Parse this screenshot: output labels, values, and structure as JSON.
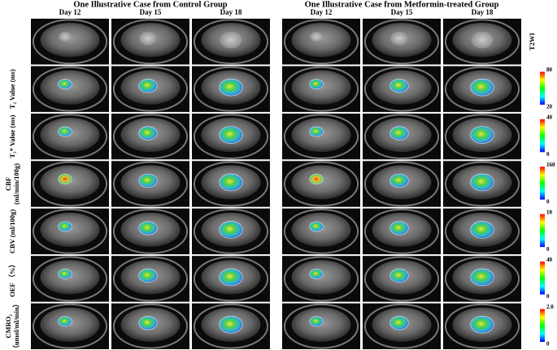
{
  "groups": [
    {
      "title": "One Illustrative Case from Control Group",
      "days": [
        "Day 12",
        "Day 15",
        "Day 18"
      ]
    },
    {
      "title": "One Illustrative Case from Metformin-treated Group",
      "days": [
        "Day 12",
        "Day 15",
        "Day 18"
      ]
    }
  ],
  "rows": [
    {
      "label": [
        "T2WI"
      ]
    },
    {
      "label": [
        "T₂ Value (ms)"
      ],
      "colorbar": {
        "max": "80",
        "min": "20"
      }
    },
    {
      "label": [
        "T₂* Value (ms)"
      ],
      "colorbar": {
        "max": "40",
        "min": "0"
      }
    },
    {
      "label": [
        "CBF",
        "(ml/min/100g)"
      ],
      "colorbar": {
        "max": "160",
        "min": "0"
      }
    },
    {
      "label": [
        "CBV (ml/100g)"
      ],
      "colorbar": {
        "max": "10",
        "min": "0"
      }
    },
    {
      "label": [
        "OEF （%）"
      ],
      "colorbar": {
        "max": "40",
        "min": "0"
      }
    },
    {
      "label": [
        "CMRO₂",
        "（umol/ml/min）"
      ],
      "colorbar": {
        "max": "2.0",
        "min": "0"
      }
    }
  ]
}
